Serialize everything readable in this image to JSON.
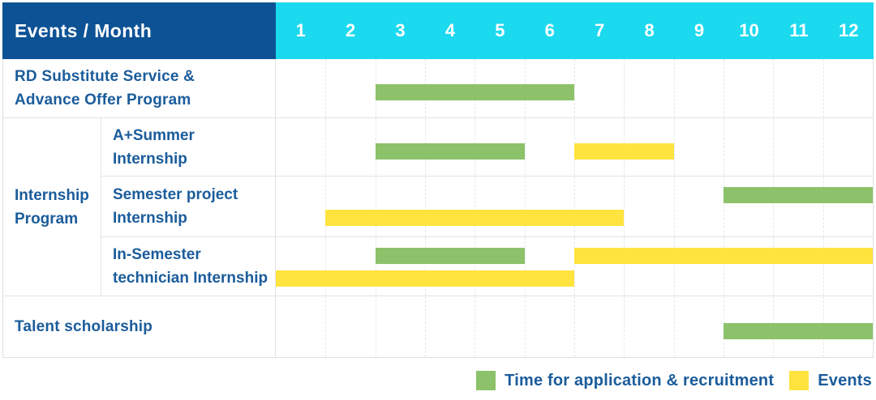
{
  "header": {
    "row_label": "Events / Month",
    "months": [
      "1",
      "2",
      "3",
      "4",
      "5",
      "6",
      "7",
      "8",
      "9",
      "10",
      "11",
      "12"
    ]
  },
  "internship_group": {
    "label_lines": [
      "Internship",
      "Program"
    ]
  },
  "rows": [
    {
      "label": "RD Substitute Service & Advance Offer Program",
      "label_lines": [
        "RD Substitute Service &",
        "Advance Offer Program"
      ],
      "group": "",
      "bars": [
        {
          "kind": "application",
          "start": 3,
          "end": 6,
          "line": "center"
        }
      ]
    },
    {
      "label": "A+Summer Internship",
      "label_lines": [
        "A+Summer",
        "Internship"
      ],
      "group": "Internship Program",
      "bars": [
        {
          "kind": "application",
          "start": 3,
          "end": 5,
          "line": "center"
        },
        {
          "kind": "event",
          "start": 7,
          "end": 8,
          "line": "center"
        }
      ]
    },
    {
      "label": "Semester project Internship",
      "label_lines": [
        "Semester project",
        "Internship"
      ],
      "group": "Internship Program",
      "bars": [
        {
          "kind": "application",
          "start": 10,
          "end": 12,
          "line": "top"
        },
        {
          "kind": "event",
          "start": 2,
          "end": 7,
          "line": "bottom"
        }
      ]
    },
    {
      "label": "In-Semester technician Internship",
      "label_lines": [
        "In-Semester",
        "technician Internship"
      ],
      "group": "Internship Program",
      "bars": [
        {
          "kind": "application",
          "start": 3,
          "end": 5,
          "line": "top"
        },
        {
          "kind": "event",
          "start": 7,
          "end": 12,
          "line": "top"
        },
        {
          "kind": "event",
          "start": 1,
          "end": 6,
          "line": "bottom"
        }
      ]
    },
    {
      "label": "Talent scholarship",
      "label_lines": [
        "Talent scholarship"
      ],
      "group": "",
      "bars": [
        {
          "kind": "application",
          "start": 10,
          "end": 12,
          "line": "center"
        }
      ]
    }
  ],
  "legend": [
    {
      "label": "Time for application & recruitment",
      "kind": "application",
      "color": "#8cc269"
    },
    {
      "label": "Events",
      "kind": "event",
      "color": "#ffe33e"
    }
  ],
  "colors": {
    "header_bg": "#0d5295",
    "months_bg": "#1bd9ee",
    "application": "#8cc269",
    "event": "#ffe33e",
    "label_text": "#1b5c9b"
  },
  "chart_data": {
    "type": "bar",
    "subtype": "gantt-timeline",
    "title": "Events / Month",
    "x_categories": [
      "1",
      "2",
      "3",
      "4",
      "5",
      "6",
      "7",
      "8",
      "9",
      "10",
      "11",
      "12"
    ],
    "x_range": [
      1,
      12
    ],
    "grid": true,
    "legend_position": "bottom-right",
    "legend": [
      {
        "name": "Time for application & recruitment",
        "color": "#8cc269"
      },
      {
        "name": "Events",
        "color": "#ffe33e"
      }
    ],
    "rows": [
      {
        "group": "",
        "event": "RD Substitute Service & Advance Offer Program",
        "application_periods": [
          [
            3,
            6
          ]
        ],
        "event_periods": []
      },
      {
        "group": "Internship Program",
        "event": "A+Summer Internship",
        "application_periods": [
          [
            3,
            5
          ]
        ],
        "event_periods": [
          [
            7,
            8
          ]
        ]
      },
      {
        "group": "Internship Program",
        "event": "Semester project Internship",
        "application_periods": [
          [
            10,
            12
          ]
        ],
        "event_periods": [
          [
            2,
            7
          ]
        ]
      },
      {
        "group": "Internship Program",
        "event": "In-Semester technician Internship",
        "application_periods": [
          [
            3,
            5
          ]
        ],
        "event_periods": [
          [
            7,
            12
          ],
          [
            1,
            6
          ]
        ]
      },
      {
        "group": "",
        "event": "Talent scholarship",
        "application_periods": [
          [
            10,
            12
          ]
        ],
        "event_periods": []
      }
    ]
  }
}
